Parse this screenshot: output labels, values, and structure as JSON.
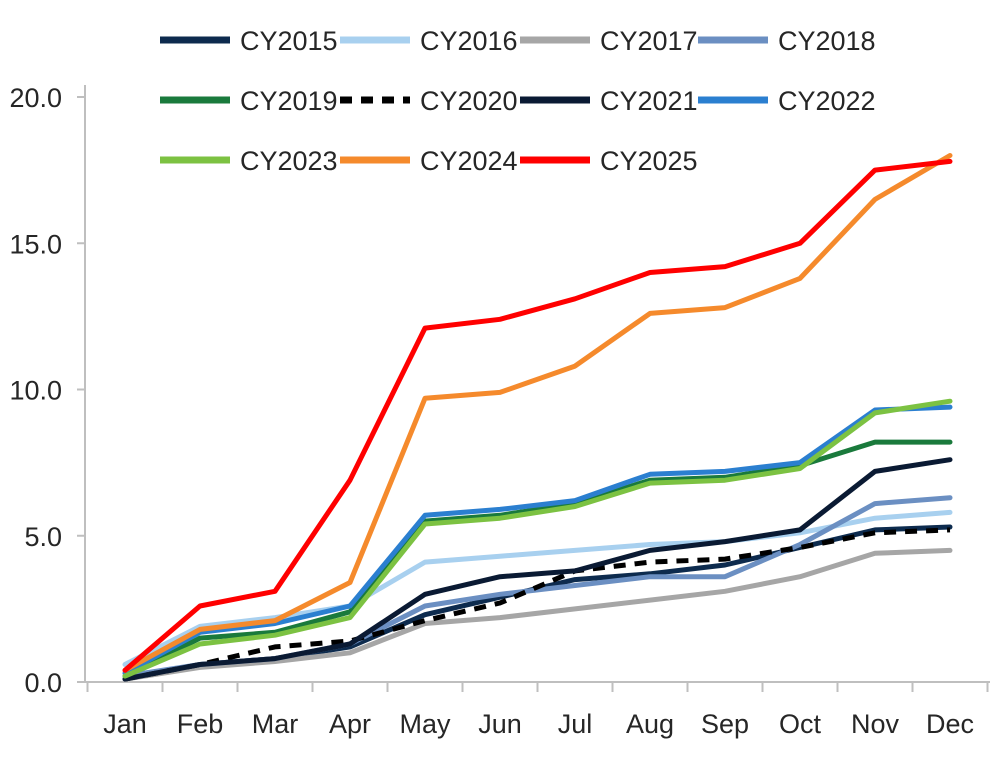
{
  "chart_data": {
    "type": "line",
    "title": "",
    "xlabel": "",
    "ylabel": "",
    "ylim": [
      0,
      20
    ],
    "yticks": [
      "0.0",
      "5.0",
      "10.0",
      "15.0",
      "20.0"
    ],
    "ytick_values": [
      0,
      5,
      10,
      15,
      20
    ],
    "categories": [
      "Jan",
      "Feb",
      "Mar",
      "Apr",
      "May",
      "Jun",
      "Jul",
      "Aug",
      "Sep",
      "Oct",
      "Nov",
      "Dec"
    ],
    "grid": false,
    "legend_position": "top",
    "series": [
      {
        "name": "CY2015",
        "color": "#0d2b4e",
        "dash": "solid",
        "values": [
          0.1,
          0.6,
          0.8,
          1.2,
          2.3,
          2.9,
          3.5,
          3.7,
          4.0,
          4.6,
          5.2,
          5.3
        ]
      },
      {
        "name": "CY2016",
        "color": "#a8d0ef",
        "dash": "solid",
        "values": [
          0.6,
          1.9,
          2.2,
          2.6,
          4.1,
          4.3,
          4.5,
          4.7,
          4.8,
          5.1,
          5.6,
          5.8
        ]
      },
      {
        "name": "CY2017",
        "color": "#a6a6a6",
        "dash": "solid",
        "values": [
          0.1,
          0.5,
          0.7,
          1.0,
          2.0,
          2.2,
          2.5,
          2.8,
          3.1,
          3.6,
          4.4,
          4.5
        ]
      },
      {
        "name": "CY2018",
        "color": "#6b8fc2",
        "dash": "solid",
        "values": [
          0.2,
          0.6,
          0.8,
          1.3,
          2.6,
          3.0,
          3.3,
          3.6,
          3.6,
          4.7,
          6.1,
          6.3
        ]
      },
      {
        "name": "CY2019",
        "color": "#1a7a3c",
        "dash": "solid",
        "values": [
          0.2,
          1.5,
          1.7,
          2.4,
          5.5,
          5.7,
          6.1,
          6.9,
          7.0,
          7.4,
          8.2,
          8.2
        ]
      },
      {
        "name": "CY2020",
        "color": "#000000",
        "dash": "dash",
        "values": [
          0.1,
          0.6,
          1.2,
          1.4,
          2.1,
          2.7,
          3.8,
          4.1,
          4.2,
          4.6,
          5.1,
          5.2
        ]
      },
      {
        "name": "CY2021",
        "color": "#0a1a33",
        "dash": "solid",
        "values": [
          0.1,
          0.6,
          0.8,
          1.3,
          3.0,
          3.6,
          3.8,
          4.5,
          4.8,
          5.2,
          7.2,
          7.6
        ]
      },
      {
        "name": "CY2022",
        "color": "#2b7fd0",
        "dash": "solid",
        "values": [
          0.3,
          1.7,
          2.0,
          2.6,
          5.7,
          5.9,
          6.2,
          7.1,
          7.2,
          7.5,
          9.3,
          9.4
        ]
      },
      {
        "name": "CY2023",
        "color": "#7cc242",
        "dash": "solid",
        "values": [
          0.2,
          1.3,
          1.6,
          2.2,
          5.4,
          5.6,
          6.0,
          6.8,
          6.9,
          7.3,
          9.2,
          9.6
        ]
      },
      {
        "name": "CY2024",
        "color": "#f58a2c",
        "dash": "solid",
        "values": [
          0.4,
          1.8,
          2.1,
          3.4,
          9.7,
          9.9,
          10.8,
          12.6,
          12.8,
          13.8,
          16.5,
          18.0
        ]
      },
      {
        "name": "CY2025",
        "color": "#ff0000",
        "dash": "solid",
        "values": [
          0.4,
          2.6,
          3.1,
          6.9,
          12.1,
          12.4,
          13.1,
          14.0,
          14.2,
          15.0,
          17.5,
          17.8
        ]
      }
    ]
  }
}
